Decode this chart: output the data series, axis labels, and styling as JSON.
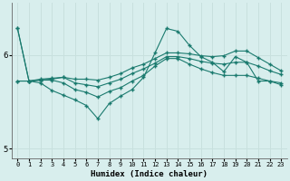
{
  "xlabel": "Humidex (Indice chaleur)",
  "background_color": "#d8eeed",
  "line_color": "#1a7a6e",
  "grid_color": "#c8e0de",
  "xlim": [
    -0.5,
    23.5
  ],
  "ylim": [
    4.9,
    6.55
  ],
  "yticks": [
    5,
    6
  ],
  "xticks": [
    0,
    1,
    2,
    3,
    4,
    5,
    6,
    7,
    8,
    9,
    10,
    11,
    12,
    13,
    14,
    15,
    16,
    17,
    18,
    19,
    20,
    21,
    22,
    23
  ],
  "line1": [
    6.28,
    5.72,
    5.73,
    5.74,
    5.76,
    5.74,
    5.74,
    5.73,
    5.76,
    5.8,
    5.86,
    5.9,
    5.96,
    6.02,
    6.02,
    6.01,
    5.99,
    5.98,
    5.99,
    6.04,
    6.04,
    5.97,
    5.9,
    5.83
  ],
  "line2": [
    5.72,
    5.72,
    5.74,
    5.75,
    5.76,
    5.7,
    5.68,
    5.66,
    5.7,
    5.74,
    5.8,
    5.85,
    5.91,
    5.98,
    5.98,
    5.96,
    5.93,
    5.91,
    5.9,
    5.92,
    5.92,
    5.88,
    5.83,
    5.79
  ],
  "line3": [
    5.72,
    5.72,
    5.73,
    5.73,
    5.7,
    5.63,
    5.6,
    5.55,
    5.61,
    5.65,
    5.72,
    5.78,
    5.88,
    5.96,
    5.96,
    5.9,
    5.85,
    5.81,
    5.78,
    5.78,
    5.78,
    5.75,
    5.72,
    5.7
  ],
  "line4": [
    6.28,
    5.72,
    5.7,
    5.62,
    5.57,
    5.52,
    5.46,
    5.32,
    5.48,
    5.56,
    5.63,
    5.76,
    6.02,
    6.28,
    6.25,
    6.1,
    5.98,
    5.92,
    5.82,
    5.98,
    5.92,
    5.72,
    5.72,
    5.68
  ]
}
